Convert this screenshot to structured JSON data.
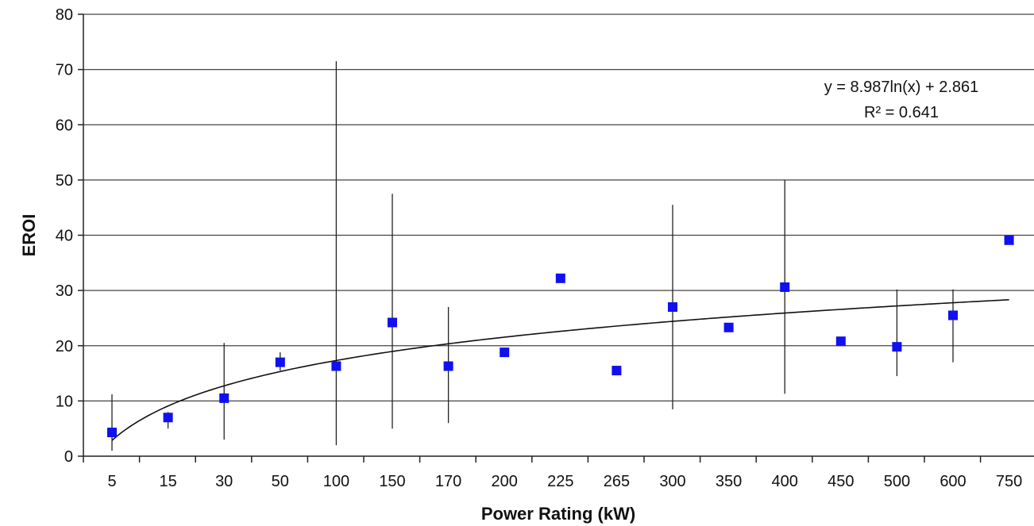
{
  "chart_data": {
    "type": "scatter",
    "title": "",
    "xlabel": "Power Rating (kW)",
    "ylabel": "EROI",
    "ylim": [
      0,
      80
    ],
    "yticks": [
      0,
      10,
      20,
      30,
      40,
      50,
      60,
      70,
      80
    ],
    "grid": "horizontal",
    "categories": [
      "5",
      "15",
      "30",
      "50",
      "100",
      "150",
      "170",
      "200",
      "225",
      "265",
      "300",
      "350",
      "400",
      "450",
      "500",
      "600",
      "750"
    ],
    "series": [
      {
        "values": [
          4.3,
          7.0,
          10.5,
          17.0,
          16.3,
          24.2,
          16.3,
          18.8,
          32.2,
          15.5,
          27.0,
          23.3,
          30.6,
          20.8,
          19.8,
          25.5,
          39.1
        ],
        "error_low": [
          1.0,
          5.0,
          3.0,
          15.5,
          2.0,
          5.0,
          6.0,
          null,
          null,
          null,
          8.5,
          null,
          11.3,
          null,
          14.5,
          17.0,
          null
        ],
        "error_high": [
          11.2,
          8.0,
          20.5,
          18.8,
          71.5,
          47.5,
          27.0,
          null,
          null,
          null,
          45.5,
          null,
          50.0,
          null,
          30.2,
          30.2,
          null
        ],
        "color": "#1010f0"
      }
    ],
    "trendline": {
      "type": "log",
      "a": 8.987,
      "b": 2.861,
      "equation": "y = 8.987ln(x) + 2.861",
      "r2": "R² = 0.641",
      "color": "#111111"
    },
    "annotation_placement": "top-right"
  }
}
